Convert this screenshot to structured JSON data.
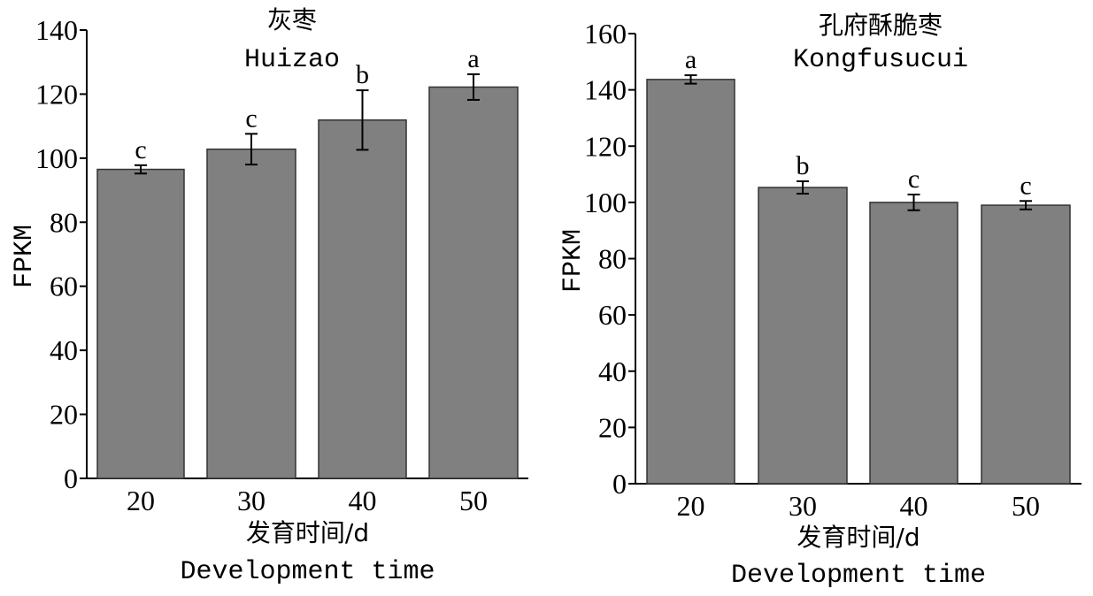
{
  "chart_data": [
    {
      "type": "bar",
      "title": "灰枣",
      "subtitle": "Huizao",
      "xlabel": "发育时间/d",
      "xlabel_en": "Development time",
      "ylabel": "FPKM",
      "categories": [
        "20",
        "30",
        "40",
        "50"
      ],
      "values": [
        96.5,
        102.8,
        111.9,
        122.2
      ],
      "errors": [
        1.3,
        4.8,
        9.3,
        4.0
      ],
      "letters": [
        "c",
        "c",
        "b",
        "a"
      ],
      "ylim": [
        0,
        140
      ],
      "yticks": [
        0,
        20,
        40,
        60,
        80,
        100,
        120,
        140
      ],
      "bar_color": "#808080"
    },
    {
      "type": "bar",
      "title": "孔府酥脆枣",
      "subtitle": "Kongfusucui",
      "xlabel": "发育时间/d",
      "xlabel_en": "Development time",
      "ylabel": "FPKM",
      "categories": [
        "20",
        "30",
        "40",
        "50"
      ],
      "values": [
        143.7,
        105.3,
        100.0,
        99.0
      ],
      "errors": [
        1.5,
        2.2,
        2.8,
        1.5
      ],
      "letters": [
        "a",
        "b",
        "c",
        "c"
      ],
      "ylim": [
        0,
        160
      ],
      "yticks": [
        0,
        20,
        40,
        60,
        80,
        100,
        120,
        140,
        160
      ],
      "bar_color": "#808080"
    }
  ]
}
